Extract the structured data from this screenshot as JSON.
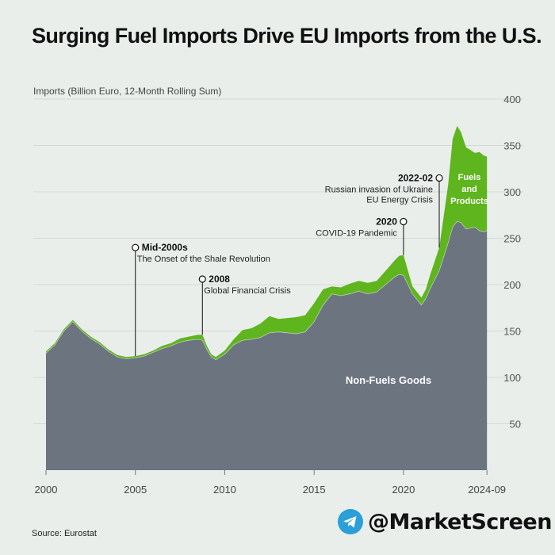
{
  "page": {
    "title": "Surging Fuel Imports Drive EU Imports from the U.S.",
    "source": "Source: Eurostat",
    "brand": "@MarketScreen",
    "brand_icon": "telegram-icon"
  },
  "chart_data": {
    "type": "area",
    "stacked": true,
    "title": "Surging Fuel Imports Drive EU Imports from the U.S.",
    "ylabel": "Imports (Billion Euro, 12-Month Rolling Sum)",
    "ylim": [
      0,
      400
    ],
    "yticks": [
      50,
      100,
      150,
      200,
      250,
      300,
      350,
      400
    ],
    "xlim": [
      2000,
      2024.75
    ],
    "xticks": [
      {
        "value": 2000,
        "label": "2000"
      },
      {
        "value": 2005,
        "label": "2005"
      },
      {
        "value": 2010,
        "label": "2010"
      },
      {
        "value": 2015,
        "label": "2015"
      },
      {
        "value": 2020,
        "label": "2020"
      },
      {
        "value": 2024.67,
        "label": "2024-09"
      }
    ],
    "grid": true,
    "colors": {
      "non_fuels": "#6c7480",
      "fuels": "#5fb51d",
      "background": "#e9eeeb",
      "grid": "#d3d9d6",
      "text": "#111111",
      "axis_text": "#555555"
    },
    "x": [
      2000,
      2000.5,
      2001,
      2001.5,
      2002,
      2002.5,
      2003,
      2003.5,
      2004,
      2004.5,
      2005,
      2005.5,
      2006,
      2006.5,
      2007,
      2007.5,
      2008,
      2008.5,
      2008.75,
      2009,
      2009.25,
      2009.5,
      2010,
      2010.5,
      2011,
      2011.5,
      2012,
      2012.5,
      2013,
      2013.5,
      2014,
      2014.5,
      2015,
      2015.5,
      2016,
      2016.5,
      2017,
      2017.5,
      2018,
      2018.5,
      2019,
      2019.5,
      2019.75,
      2020,
      2020.5,
      2021,
      2021.25,
      2021.5,
      2022,
      2022.5,
      2022.75,
      2023,
      2023.2,
      2023.5,
      2024,
      2024.25,
      2024.5,
      2024.67
    ],
    "series": [
      {
        "name": "Non-Fuels Goods",
        "values": [
          126,
          135,
          150,
          160,
          150,
          142,
          136,
          128,
          122,
          120,
          121,
          123,
          127,
          131,
          134,
          138,
          140,
          141,
          140,
          130,
          122,
          119,
          125,
          135,
          140,
          141,
          143,
          148,
          149,
          148,
          147,
          149,
          160,
          178,
          190,
          188,
          190,
          193,
          190,
          192,
          200,
          208,
          211,
          210,
          190,
          178,
          185,
          196,
          215,
          245,
          262,
          268,
          267,
          260,
          262,
          258,
          257,
          258
        ]
      },
      {
        "name": "Fuels and Products",
        "values": [
          2,
          2,
          2,
          2,
          2,
          2,
          2,
          2,
          2,
          2,
          2,
          2,
          2,
          3,
          3,
          4,
          4,
          5,
          6,
          4,
          3,
          3,
          4,
          6,
          11,
          12,
          15,
          18,
          14,
          16,
          18,
          18,
          20,
          17,
          8,
          9,
          11,
          11,
          12,
          12,
          15,
          18,
          20,
          22,
          8,
          8,
          10,
          15,
          25,
          63,
          95,
          103,
          98,
          88,
          80,
          85,
          82,
          80
        ]
      }
    ],
    "area_labels": [
      "Non-Fuels Goods",
      "Fuels and Products"
    ],
    "annotations": [
      {
        "x": 2005,
        "y": 123,
        "top_y": 240,
        "title": "Mid-2000s",
        "text": "The Onset of the Shale Revolution",
        "side": "right"
      },
      {
        "x": 2008.75,
        "y": 146,
        "top_y": 206,
        "title": "2008",
        "text": "Global Financial Crisis",
        "side": "right"
      },
      {
        "x": 2020,
        "y": 232,
        "top_y": 268,
        "title": "2020",
        "text": "COVID-19 Pandemic",
        "side": "left"
      },
      {
        "x": 2022,
        "y": 240,
        "top_y": 315,
        "title": "2022-02",
        "text": "Russian invasion of Ukraine\nEU Energy Crisis",
        "side": "left"
      }
    ]
  }
}
